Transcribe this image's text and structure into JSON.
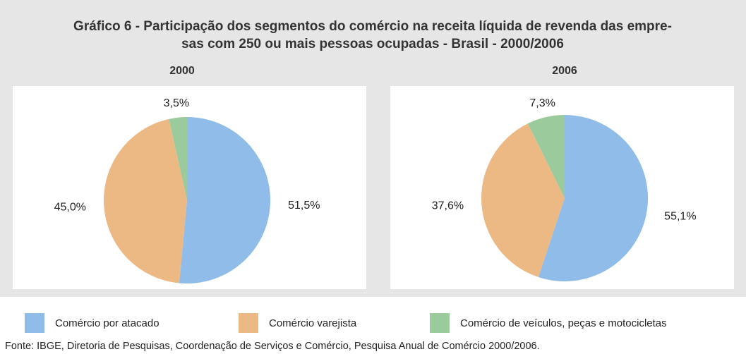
{
  "title": [
    "Gráfico 6 - Participação dos segmentos do comércio na receita líquida de revenda das empre-",
    "sas com 250 ou mais pessoas ocupadas - Brasil - 2000/2006"
  ],
  "legend": [
    {
      "name": "Comércio por atacado",
      "color": "#8fbce8"
    },
    {
      "name": "Comércio varejista",
      "color": "#ecb985"
    },
    {
      "name": "Comércio de veículos, peças e motocicletas",
      "color": "#9bca9c"
    }
  ],
  "source": "Fonte: IBGE, Diretoria de Pesquisas, Coordenação de Serviços e Comércio, Pesquisa Anual de Comércio 2000/2006.",
  "chart_data": [
    {
      "type": "pie",
      "title": "2000",
      "values": [
        51.5,
        45.0,
        3.5
      ],
      "value_labels": [
        "51,5%",
        "45,0%",
        "3,5%"
      ]
    },
    {
      "type": "pie",
      "title": "2006",
      "values": [
        55.1,
        37.6,
        7.3
      ],
      "value_labels": [
        "55,1%",
        "37,6%",
        "7,3%"
      ]
    }
  ]
}
